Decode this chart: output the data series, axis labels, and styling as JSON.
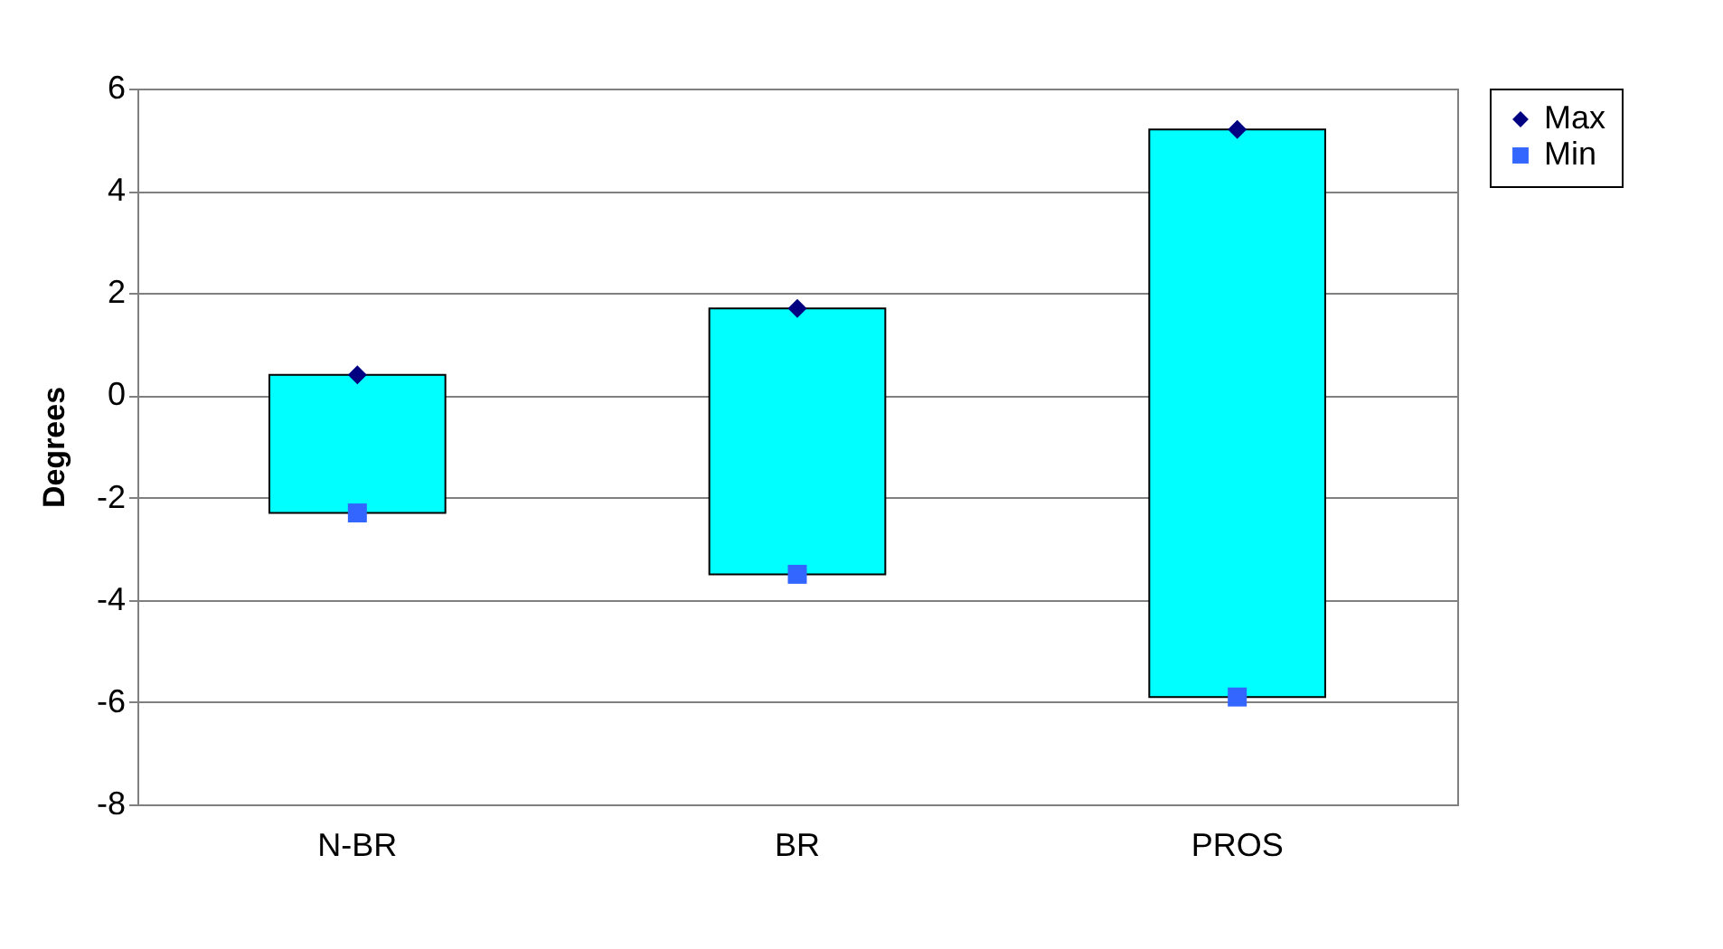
{
  "chart_data": {
    "type": "bar",
    "ylabel": "Degrees",
    "categories": [
      "N-BR",
      "BR",
      "PROS"
    ],
    "series": [
      {
        "color": "#00ffff",
        "base": [
          -2.3,
          -3.5,
          -5.9
        ],
        "values": [
          2.7,
          5.2,
          11.1
        ]
      },
      {
        "type": "scatter",
        "name": "Max",
        "color": "#000080",
        "marker": "diamond",
        "values": [
          0.4,
          1.7,
          5.2
        ]
      },
      {
        "type": "scatter",
        "name": "Min",
        "color": "#3366ff",
        "marker": "square",
        "values": [
          -2.3,
          -3.5,
          -5.9
        ]
      }
    ],
    "ylim": [
      -8,
      6
    ],
    "yticks": [
      -8,
      -6,
      -4,
      -2,
      0,
      2,
      4,
      6
    ],
    "grid": "y",
    "legend": "right"
  }
}
